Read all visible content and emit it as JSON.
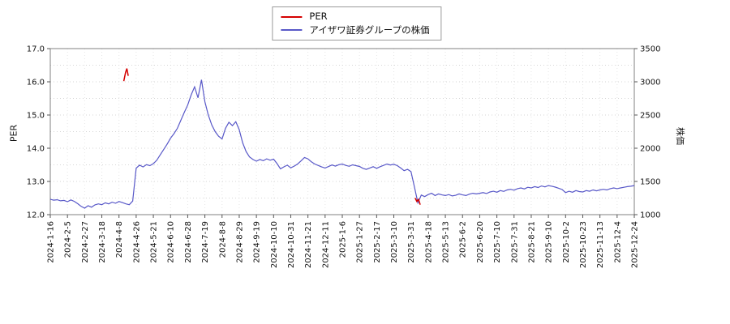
{
  "legend": {
    "items": [
      {
        "label": "PER",
        "color": "#d40000"
      },
      {
        "label": "アイザワ証券グループの株価",
        "color": "#5858c8"
      }
    ]
  },
  "chart_data": {
    "type": "line",
    "title": "",
    "grid": "dotted",
    "legend_position": "top-center",
    "left_axis": {
      "label": "PER",
      "min": 12.0,
      "max": 17.0,
      "ticks": [
        17.0,
        16.0,
        15.0,
        14.0,
        13.0,
        12.0
      ]
    },
    "right_axis": {
      "label": "株価",
      "min": 1000,
      "max": 3500,
      "ticks": [
        3500,
        3000,
        2500,
        2000,
        1500,
        1000
      ]
    },
    "x_ticks": [
      "2024-1-16",
      "2024-2-5",
      "2024-2-27",
      "2024-3-18",
      "2024-4-8",
      "2024-4-26",
      "2024-5-21",
      "2024-6-10",
      "2024-6-28",
      "2024-7-19",
      "2024-8-8",
      "2024-8-29",
      "2024-9-19",
      "2024-10-10",
      "2024-10-31",
      "2024-11-21",
      "2024-12-11",
      "2025-1-6",
      "2025-1-27",
      "2025-2-17",
      "2025-3-10",
      "2025-3-31",
      "2025-4-18",
      "2025-5-13",
      "2025-6-2",
      "2025-6-20",
      "2025-7-10",
      "2025-7-31",
      "2025-8-21",
      "2025-9-10",
      "2025-10-2",
      "2025-10-23",
      "2025-11-13",
      "2025-12-4",
      "2025-12-24"
    ],
    "series": [
      {
        "name": "PER",
        "axis": "left",
        "color": "#d40000",
        "segments": [
          [
            [
              21.4,
              16.02
            ],
            [
              21.9,
              16.28
            ],
            [
              22.3,
              16.4
            ],
            [
              22.7,
              16.18
            ]
          ],
          [
            [
              106.2,
              12.5
            ],
            [
              106.7,
              12.4
            ],
            [
              107.2,
              12.46
            ],
            [
              107.7,
              12.3
            ]
          ]
        ]
      },
      {
        "name": "アイザワ証券グループの株価",
        "axis": "right",
        "color": "#5858c8",
        "values": [
          1230,
          1218,
          1225,
          1208,
          1215,
          1195,
          1222,
          1200,
          1165,
          1125,
          1098,
          1135,
          1112,
          1148,
          1162,
          1150,
          1178,
          1162,
          1188,
          1172,
          1198,
          1182,
          1162,
          1150,
          1205,
          1700,
          1745,
          1718,
          1752,
          1738,
          1768,
          1820,
          1900,
          1980,
          2060,
          2150,
          2220,
          2300,
          2420,
          2540,
          2650,
          2800,
          2925,
          2760,
          3030,
          2700,
          2500,
          2350,
          2250,
          2180,
          2140,
          2300,
          2390,
          2340,
          2400,
          2280,
          2080,
          1950,
          1870,
          1830,
          1805,
          1830,
          1812,
          1840,
          1820,
          1835,
          1770,
          1690,
          1720,
          1745,
          1705,
          1730,
          1762,
          1810,
          1860,
          1840,
          1795,
          1762,
          1740,
          1718,
          1702,
          1725,
          1748,
          1730,
          1752,
          1762,
          1742,
          1728,
          1750,
          1738,
          1726,
          1698,
          1682,
          1702,
          1722,
          1698,
          1722,
          1742,
          1762,
          1748,
          1758,
          1738,
          1702,
          1662,
          1682,
          1648,
          1420,
          1178,
          1295,
          1272,
          1302,
          1322,
          1288,
          1312,
          1298,
          1288,
          1302,
          1282,
          1292,
          1312,
          1298,
          1288,
          1308,
          1322,
          1312,
          1322,
          1332,
          1318,
          1342,
          1352,
          1338,
          1362,
          1350,
          1372,
          1382,
          1368,
          1392,
          1402,
          1388,
          1412,
          1402,
          1422,
          1408,
          1432,
          1418,
          1438,
          1428,
          1415,
          1398,
          1378,
          1332,
          1352,
          1338,
          1362,
          1348,
          1342,
          1362,
          1352,
          1372,
          1358,
          1372,
          1382,
          1372,
          1392,
          1402,
          1392,
          1402,
          1412,
          1422,
          1428,
          1438
        ]
      }
    ]
  }
}
